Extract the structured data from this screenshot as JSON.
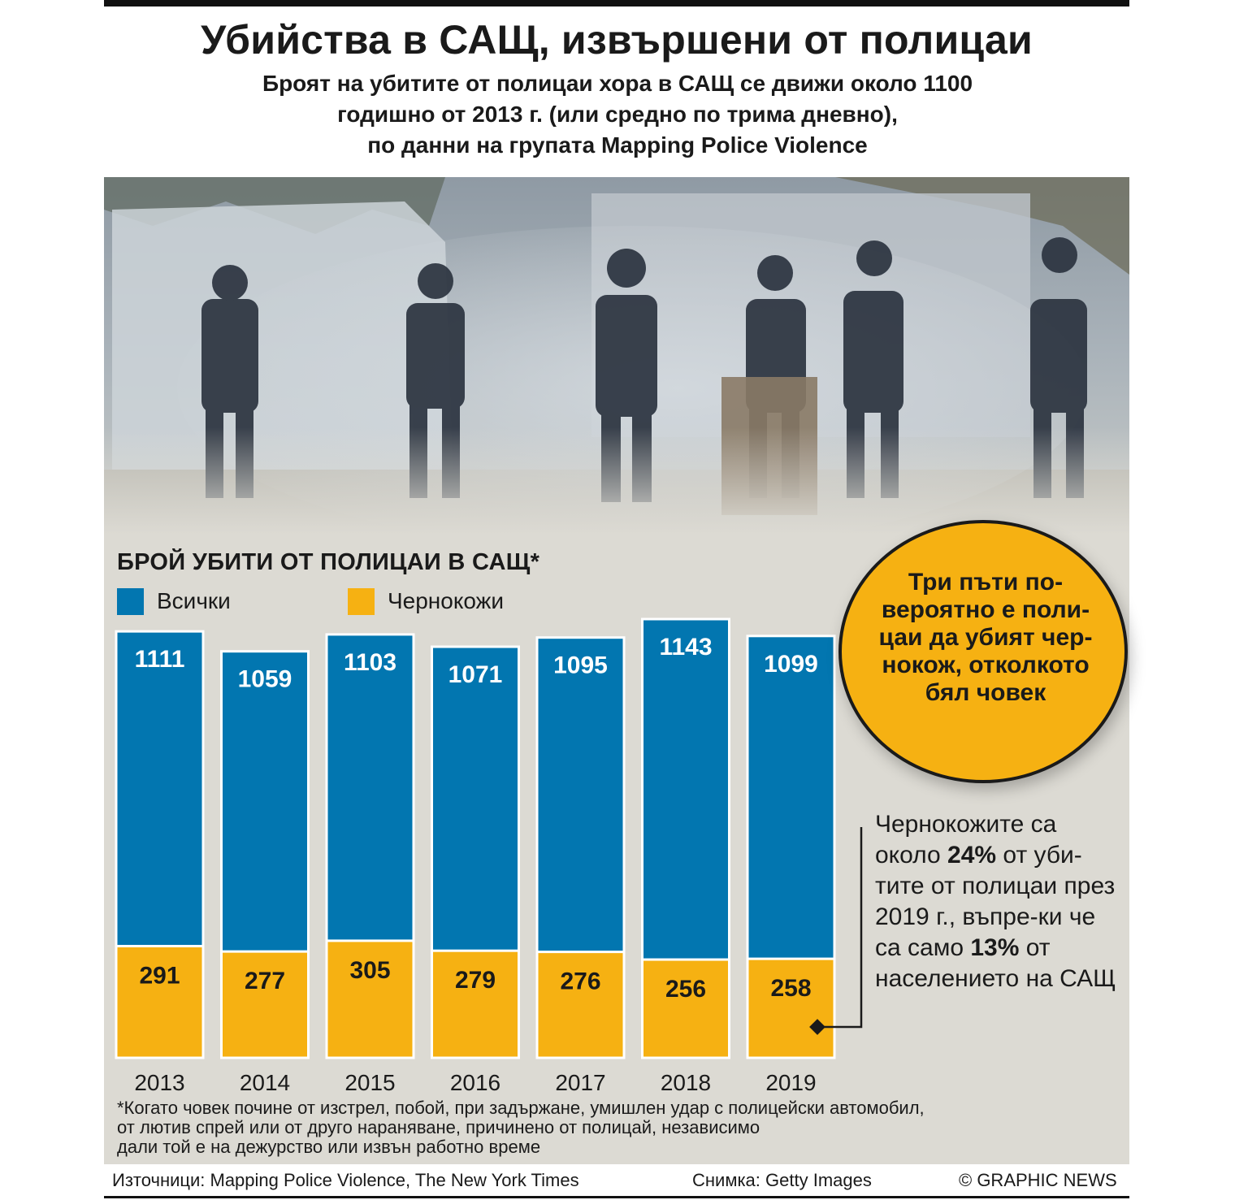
{
  "header": {
    "title": "Убийства в САЩ, извършени от полицаи",
    "subtitle": "Броят на убитите от полицаи хора в САЩ се движи около 1100\nгодишно от 2013 г. (или средно по трима дневно),\nпо данни на групата Mapping Police Violence"
  },
  "colors": {
    "all": "#0276b0",
    "black": "#f6b112",
    "panel": "#dcdad3"
  },
  "chart_data": {
    "type": "bar",
    "title": "БРОЙ УБИТИ ОТ ПОЛИЦАИ В САЩ*",
    "categories": [
      "2013",
      "2014",
      "2015",
      "2016",
      "2017",
      "2018",
      "2019"
    ],
    "series": [
      {
        "name": "Всички",
        "values": [
          1111,
          1059,
          1103,
          1071,
          1095,
          1143,
          1099
        ]
      },
      {
        "name": "Чернокожи",
        "values": [
          291,
          277,
          305,
          279,
          276,
          256,
          258
        ]
      }
    ],
    "stacking": "overlay",
    "ylim": [
      0,
      1143
    ],
    "grid": false,
    "legend": "top-left"
  },
  "callout": {
    "text": "Три пъти по-\nвероятно е поли-\nцаи да убият чер-\nнокож, отколкото\nбял човек"
  },
  "note": {
    "p1": "Чернокожите са около ",
    "pct1": "24%",
    "p2": " от уби-тите от полицаи през 2019 г., въпре-ки че са само ",
    "pct2": "13%",
    "p3": " от населението на САЩ"
  },
  "footnote": "*Когато човек почине от изстрел, побой, при задържане, умишлен удар с полицейски автомобил,\nот лютив спрей или от друго нараняване, причинено от полицай, независимо\nдали той е на дежурство или извън работно време",
  "footer": {
    "sources": "Източници: Mapping Police Violence, The New York Times",
    "photo_credit": "Снимка: Getty Images",
    "copyright": "© GRAPHIC NEWS"
  }
}
